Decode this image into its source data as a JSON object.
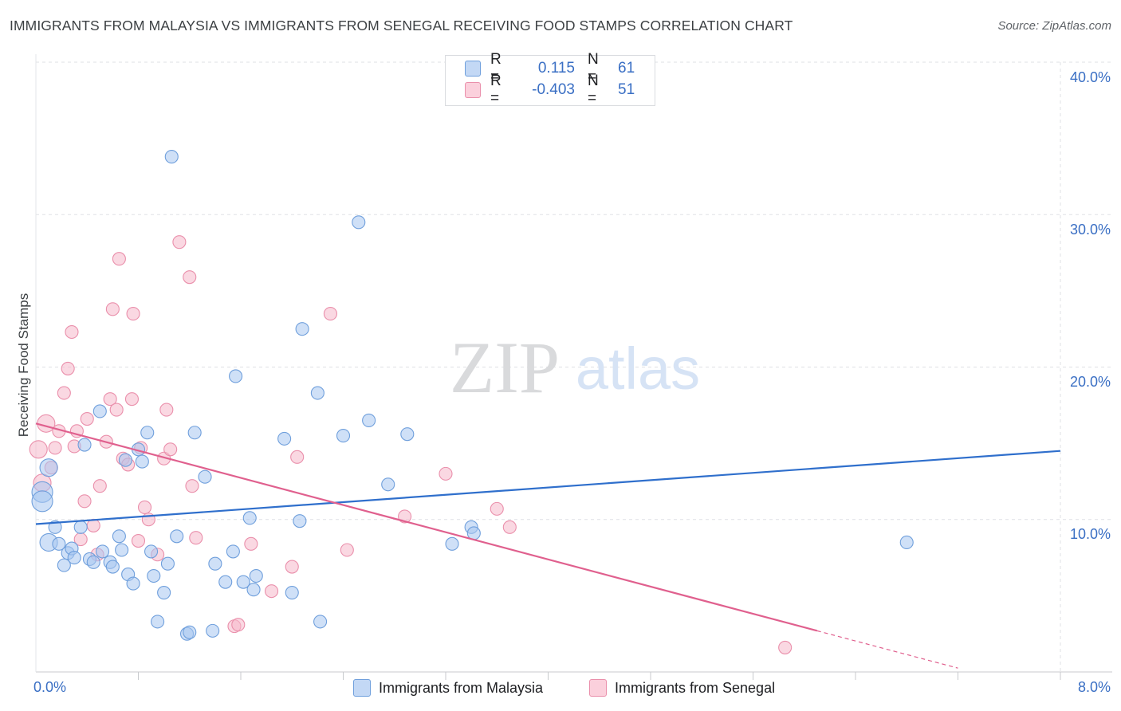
{
  "title": "IMMIGRANTS FROM MALAYSIA VS IMMIGRANTS FROM SENEGAL RECEIVING FOOD STAMPS CORRELATION CHART",
  "source": "Source: ZipAtlas.com",
  "watermark": {
    "zip": "ZIP",
    "atlas": "atlas"
  },
  "legend": {
    "r_label": "R =",
    "n_label": "N =",
    "rows": [
      {
        "r": "0.115",
        "n": "61",
        "color": "#a8c6f0"
      },
      {
        "r": "-0.403",
        "n": "51",
        "color": "#f6b8cb"
      }
    ]
  },
  "colors": {
    "malaysia_fill": "#a8c6f0",
    "malaysia_stroke": "#6f9fdc",
    "malaysia_line": "#2f6fcc",
    "senegal_fill": "#f6b8cb",
    "senegal_stroke": "#ea8fab",
    "senegal_line": "#e0608e",
    "tick_text": "#3a6fc4",
    "grid": "#dfe1e5"
  },
  "chart_data": {
    "type": "scatter",
    "xlabel": "",
    "ylabel": "Receiving Food Stamps",
    "xlim": [
      0,
      8
    ],
    "ylim": [
      0,
      40
    ],
    "x_tick_labels": [
      "0.0%",
      "8.0%"
    ],
    "y_ticks": [
      10,
      20,
      30,
      40
    ],
    "y_tick_labels": [
      "10.0%",
      "20.0%",
      "30.0%",
      "40.0%"
    ],
    "grid": true,
    "series": [
      {
        "name": "Immigrants from Malaysia",
        "r": 0.115,
        "n": 61,
        "trend": {
          "x0": 0,
          "y0": 9.7,
          "x1": 8,
          "y1": 14.5
        },
        "points": [
          [
            0.05,
            11.8
          ],
          [
            0.05,
            11.2
          ],
          [
            0.1,
            13.4
          ],
          [
            0.1,
            8.5
          ],
          [
            0.15,
            9.5
          ],
          [
            0.18,
            8.4
          ],
          [
            0.22,
            7
          ],
          [
            0.25,
            7.8
          ],
          [
            0.28,
            8.1
          ],
          [
            0.3,
            7.5
          ],
          [
            0.35,
            9.5
          ],
          [
            0.38,
            14.9
          ],
          [
            0.42,
            7.4
          ],
          [
            0.45,
            7.2
          ],
          [
            0.5,
            17.1
          ],
          [
            0.52,
            7.9
          ],
          [
            0.58,
            7.2
          ],
          [
            0.6,
            6.9
          ],
          [
            0.65,
            8.9
          ],
          [
            0.67,
            8
          ],
          [
            0.7,
            13.9
          ],
          [
            0.72,
            6.4
          ],
          [
            0.76,
            5.8
          ],
          [
            0.8,
            14.6
          ],
          [
            0.83,
            13.8
          ],
          [
            0.87,
            15.7
          ],
          [
            0.9,
            7.9
          ],
          [
            0.92,
            6.3
          ],
          [
            0.95,
            3.3
          ],
          [
            1.0,
            5.2
          ],
          [
            1.03,
            7.1
          ],
          [
            1.06,
            33.8
          ],
          [
            1.1,
            8.9
          ],
          [
            1.18,
            2.5
          ],
          [
            1.2,
            2.6
          ],
          [
            1.24,
            15.7
          ],
          [
            1.32,
            12.8
          ],
          [
            1.38,
            2.7
          ],
          [
            1.4,
            7.1
          ],
          [
            1.48,
            5.9
          ],
          [
            1.54,
            7.9
          ],
          [
            1.56,
            19.4
          ],
          [
            1.62,
            5.9
          ],
          [
            1.67,
            10.1
          ],
          [
            1.7,
            5.4
          ],
          [
            1.72,
            6.3
          ],
          [
            1.94,
            15.3
          ],
          [
            2.0,
            5.2
          ],
          [
            2.06,
            9.9
          ],
          [
            2.08,
            22.5
          ],
          [
            2.2,
            18.3
          ],
          [
            2.22,
            3.3
          ],
          [
            2.4,
            15.5
          ],
          [
            2.52,
            29.5
          ],
          [
            2.6,
            16.5
          ],
          [
            2.75,
            12.3
          ],
          [
            2.9,
            15.6
          ],
          [
            3.25,
            8.4
          ],
          [
            3.4,
            9.5
          ],
          [
            3.42,
            9.1
          ],
          [
            6.8,
            8.5
          ]
        ]
      },
      {
        "name": "Immigrants from Senegal",
        "r": -0.403,
        "n": 51,
        "trend": {
          "x0": 0,
          "y0": 16.3,
          "x1": 6.1,
          "y1": 2.7,
          "dash_x1": 7.2,
          "dash_y1": 0.25
        },
        "points": [
          [
            0.02,
            14.6
          ],
          [
            0.05,
            12.4
          ],
          [
            0.08,
            16.3
          ],
          [
            0.12,
            13.4
          ],
          [
            0.15,
            14.7
          ],
          [
            0.18,
            15.8
          ],
          [
            0.22,
            18.3
          ],
          [
            0.25,
            19.9
          ],
          [
            0.28,
            22.3
          ],
          [
            0.3,
            14.8
          ],
          [
            0.32,
            15.8
          ],
          [
            0.35,
            8.7
          ],
          [
            0.38,
            11.2
          ],
          [
            0.4,
            16.6
          ],
          [
            0.45,
            9.6
          ],
          [
            0.48,
            7.7
          ],
          [
            0.5,
            12.2
          ],
          [
            0.55,
            15.1
          ],
          [
            0.58,
            17.9
          ],
          [
            0.6,
            23.8
          ],
          [
            0.63,
            17.2
          ],
          [
            0.65,
            27.1
          ],
          [
            0.68,
            14
          ],
          [
            0.72,
            13.6
          ],
          [
            0.75,
            17.9
          ],
          [
            0.76,
            23.5
          ],
          [
            0.8,
            8.6
          ],
          [
            0.82,
            14.7
          ],
          [
            0.85,
            10.8
          ],
          [
            0.88,
            10
          ],
          [
            0.95,
            7.7
          ],
          [
            1.0,
            14
          ],
          [
            1.02,
            17.2
          ],
          [
            1.05,
            14.6
          ],
          [
            1.12,
            28.2
          ],
          [
            1.2,
            25.9
          ],
          [
            1.22,
            12.2
          ],
          [
            1.25,
            8.8
          ],
          [
            1.55,
            3.0
          ],
          [
            1.58,
            3.1
          ],
          [
            1.68,
            8.4
          ],
          [
            1.84,
            5.3
          ],
          [
            2.0,
            6.9
          ],
          [
            2.04,
            14.1
          ],
          [
            2.3,
            23.5
          ],
          [
            2.43,
            8
          ],
          [
            2.88,
            10.2
          ],
          [
            3.2,
            13
          ],
          [
            3.6,
            10.7
          ],
          [
            3.7,
            9.5
          ],
          [
            5.85,
            1.6
          ]
        ]
      }
    ]
  }
}
